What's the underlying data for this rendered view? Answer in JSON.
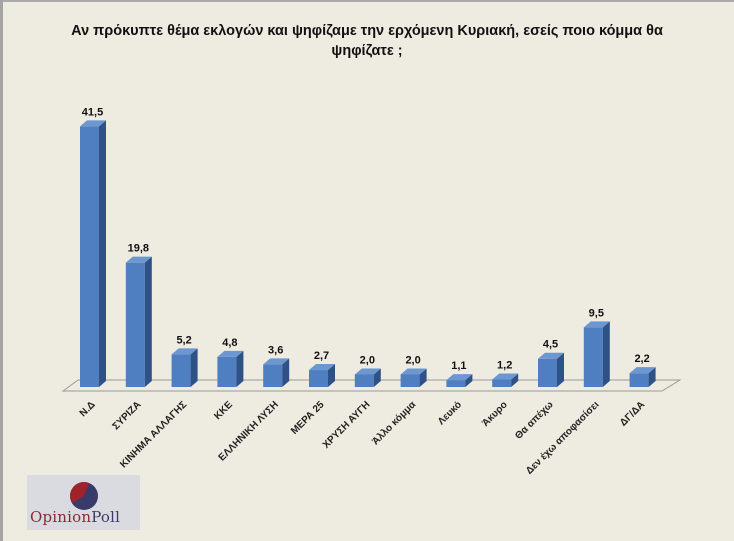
{
  "title": "Αν πρόκυπτε θέμα εκλογών και ψηφίζαμε  την ερχόμενη Κυριακή, εσείς ποιο κόμμα θα ψηφίζατε ;",
  "logo": {
    "part1": "Opinion",
    "part2": "Poll"
  },
  "colors": {
    "bar_front": "#4f7fc0",
    "bar_side": "#2f5286",
    "bar_top": "#6c97d1",
    "background": "#eeebe1",
    "logo_red": "#8a2a33",
    "logo_blue": "#3b3d66"
  },
  "chart_data": {
    "type": "bar",
    "title": "Αν πρόκυπτε θέμα εκλογών και ψηφίζαμε  την ερχόμενη Κυριακή, εσείς ποιο κόμμα θα ψηφίζατε ;",
    "xlabel": "",
    "ylabel": "",
    "style": "3d-column",
    "grid": false,
    "legend": null,
    "categories": [
      "Ν.Δ",
      "ΣΥΡΙΖΑ",
      "ΚΙΝΗΜΑ ΑΛΛΑΓΗΣ",
      "ΚΚΕ",
      "ΕΛΛΗΝΙΚΗ ΛΥΣΗ",
      "ΜΕΡΑ 25",
      "ΧΡΥΣΗ ΑΥΓΗ",
      "Άλλο κόμμα",
      "Λευκό",
      "Άκυρο",
      "Θα απέχω",
      "Δεν έχω αποφασίσει",
      "ΔΓ/ΔΑ"
    ],
    "values": [
      41.5,
      19.8,
      5.2,
      4.8,
      3.6,
      2.7,
      2.0,
      2.0,
      1.1,
      1.2,
      4.5,
      9.5,
      2.2
    ],
    "value_labels": [
      "41,5",
      "19,8",
      "5,2",
      "4,8",
      "3,6",
      "2,7",
      "2,0",
      "2,0",
      "1,1",
      "1,2",
      "4,5",
      "9,5",
      "2,2"
    ],
    "ylim": [
      0,
      45
    ]
  }
}
